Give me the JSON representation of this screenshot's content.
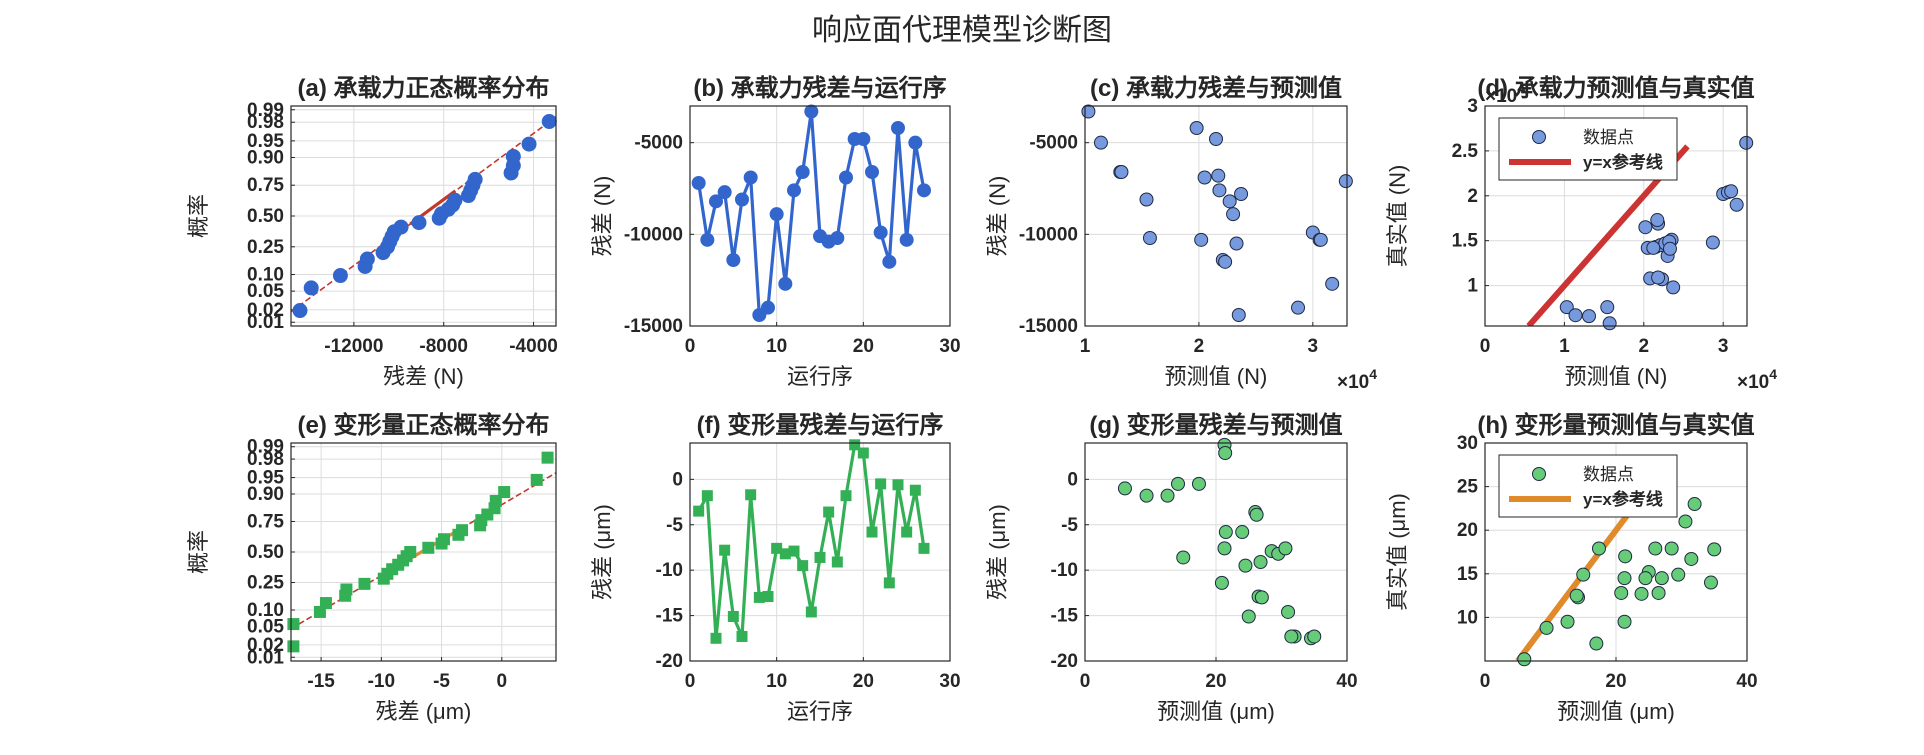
{
  "figure_title": "响应面代理模型诊断图",
  "colors": {
    "blue": "#3366CC",
    "blue_light": "#7799DD",
    "green": "#33B055",
    "green_light": "#66CC77",
    "red_ref": "#CC3333",
    "orange_ref": "#E08A2C"
  },
  "chart_data": [
    {
      "id": "a",
      "type": "scatter",
      "title": "(a) 承载力正态概率分布",
      "xlabel": "残差 (N)",
      "ylabel": "概率",
      "xlim": [
        -14800,
        -3000
      ],
      "xticks": [
        -12000,
        -8000,
        -4000
      ],
      "xtick_labels": [
        "-12000",
        "-8000",
        "-4000"
      ],
      "prob_ticks": [
        0.01,
        0.02,
        0.05,
        0.1,
        0.25,
        0.5,
        0.75,
        0.9,
        0.95,
        0.98,
        0.99
      ],
      "prob_tick_labels": [
        "0.01",
        "0.02",
        "0.05",
        "0.10",
        "0.25",
        "0.50",
        "0.75",
        "0.90",
        "0.95",
        "0.98",
        "0.99"
      ],
      "values": [
        -14400,
        -13900,
        -12600,
        -11500,
        -11400,
        -10700,
        -10500,
        -10400,
        -10300,
        -10200,
        -9900,
        -9100,
        -8200,
        -8100,
        -7800,
        -7600,
        -7500,
        -6900,
        -6800,
        -6700,
        -6600,
        -5000,
        -4900,
        -4900,
        -4200,
        -3300
      ],
      "ref_line": [
        [
          -14800,
          -3000
        ],
        [
          0.018,
          0.985
        ]
      ],
      "marker": "circle",
      "color": "#3366CC"
    },
    {
      "id": "b",
      "type": "line",
      "title": "(b) 承载力残差与运行序",
      "xlabel": "运行序",
      "ylabel": "残差 (N)",
      "xlim": [
        0,
        30
      ],
      "ylim": [
        -15000,
        -3000
      ],
      "xticks": [
        0,
        10,
        20,
        30
      ],
      "yticks": [
        -15000,
        -10000,
        -5000
      ],
      "x": [
        1,
        2,
        3,
        4,
        5,
        6,
        7,
        8,
        9,
        10,
        11,
        12,
        13,
        14,
        15,
        16,
        17,
        18,
        19,
        20,
        21,
        22,
        23,
        24,
        25,
        26,
        27
      ],
      "y": [
        -7200,
        -10300,
        -8200,
        -7700,
        -11400,
        -8100,
        -6900,
        -14400,
        -14000,
        -8900,
        -12700,
        -7600,
        -6600,
        -3300,
        -10100,
        -10400,
        -10200,
        -6900,
        -4800,
        -4800,
        -6600,
        -9900,
        -11500,
        -4200,
        -10300,
        -5000,
        -7600
      ],
      "marker": "circle",
      "color": "#3366CC"
    },
    {
      "id": "c",
      "type": "scatter",
      "title": "(c) 承载力残差与预测值",
      "xlabel": "预测值 (N)",
      "ylabel": "残差 (N)",
      "xexponent": "×10^4",
      "xlim": [
        10000,
        33000
      ],
      "ylim": [
        -15000,
        -3000
      ],
      "xticks": [
        10000,
        20000,
        30000
      ],
      "xtick_labels": [
        "1",
        "2",
        "3"
      ],
      "yticks": [
        -15000,
        -10000,
        -5000
      ],
      "x": [
        10300,
        11400,
        13100,
        13200,
        15400,
        15700,
        19800,
        20200,
        20500,
        21500,
        21700,
        21800,
        22100,
        22300,
        22700,
        23000,
        23300,
        23500,
        23700,
        28700,
        30000,
        30600,
        30700,
        31700,
        32900
      ],
      "y": [
        -3300,
        -5000,
        -6600,
        -6600,
        -8100,
        -10200,
        -4200,
        -10300,
        -6900,
        -4800,
        -6800,
        -7600,
        -11400,
        -11500,
        -8200,
        -8900,
        -10500,
        -14400,
        -7800,
        -14000,
        -9900,
        -10300,
        -10300,
        -12700,
        -7100
      ],
      "marker": "circle",
      "color": "#7799DD"
    },
    {
      "id": "d",
      "type": "scatter",
      "title": "(d) 承载力预测值与真实值",
      "xlabel": "预测值 (N)",
      "ylabel": "真实值 (N)",
      "xexponent": "×10^4",
      "yexponent": "×10^4",
      "xlim": [
        0,
        33000
      ],
      "ylim": [
        5500,
        30000
      ],
      "xticks": [
        0,
        10000,
        20000,
        30000
      ],
      "xtick_labels": [
        "0",
        "1",
        "2",
        "3"
      ],
      "yticks": [
        10000,
        15000,
        20000,
        25000,
        30000
      ],
      "ytick_labels": [
        "1",
        "1.5",
        "2",
        "2.5",
        "3"
      ],
      "x": [
        10300,
        11400,
        13100,
        15400,
        15700,
        20200,
        20500,
        21500,
        21800,
        22100,
        22300,
        22700,
        23000,
        23500,
        23700,
        20800,
        21200,
        21700,
        23200,
        28700,
        30000,
        30600,
        31700,
        32900,
        21800,
        23300,
        31000
      ],
      "y": [
        7600,
        6700,
        6600,
        7600,
        5800,
        16500,
        14200,
        14300,
        16900,
        14500,
        10700,
        14700,
        13300,
        15100,
        9800,
        10800,
        14200,
        17300,
        14900,
        14800,
        20200,
        20400,
        19000,
        25900,
        10900,
        14100,
        20500
      ],
      "legend": {
        "points": "数据点",
        "ref": "y=x参考线"
      },
      "ref_line": [
        [
          5500,
          25500
        ],
        [
          5500,
          25500
        ]
      ],
      "marker": "circle",
      "color": "#7799DD",
      "ref_color": "#CC3333"
    },
    {
      "id": "e",
      "type": "scatter",
      "title": "(e) 变形量正态概率分布",
      "xlabel": "残差 (μm)",
      "ylabel": "概率",
      "xlim": [
        -17.5,
        4.5
      ],
      "xticks": [
        -15,
        -10,
        -5,
        0
      ],
      "xtick_labels": [
        "-15",
        "-10",
        "-5",
        "0"
      ],
      "prob_ticks": [
        0.01,
        0.02,
        0.05,
        0.1,
        0.25,
        0.5,
        0.75,
        0.9,
        0.95,
        0.98,
        0.99
      ],
      "prob_tick_labels": [
        "0.01",
        "0.02",
        "0.05",
        "0.10",
        "0.25",
        "0.50",
        "0.75",
        "0.90",
        "0.95",
        "0.98",
        "0.99"
      ],
      "values": [
        -17.3,
        -17.3,
        -15.1,
        -14.6,
        -13.0,
        -12.9,
        -11.4,
        -9.8,
        -9.5,
        -9.1,
        -8.6,
        -8.2,
        -7.9,
        -7.6,
        -6.1,
        -5.0,
        -4.8,
        -3.6,
        -3.3,
        -1.8,
        -1.7,
        -1.2,
        -0.6,
        -0.5,
        0.2,
        2.9,
        3.8
      ],
      "ref_line": [
        [
          -17.5,
          4.5
        ],
        [
          0.045,
          0.96
        ]
      ],
      "marker": "square",
      "color": "#33B055"
    },
    {
      "id": "f",
      "type": "line",
      "title": "(f) 变形量残差与运行序",
      "xlabel": "运行序",
      "ylabel": "残差 (μm)",
      "xlim": [
        0,
        30
      ],
      "ylim": [
        -20,
        4
      ],
      "xticks": [
        0,
        10,
        20,
        30
      ],
      "yticks": [
        -20,
        -15,
        -10,
        -5,
        0
      ],
      "x": [
        1,
        2,
        3,
        4,
        5,
        6,
        7,
        8,
        9,
        10,
        11,
        12,
        13,
        14,
        15,
        16,
        17,
        18,
        19,
        20,
        21,
        22,
        23,
        24,
        25,
        26,
        27
      ],
      "y": [
        -3.5,
        -1.8,
        -17.5,
        -7.8,
        -15.1,
        -17.3,
        -1.7,
        -13.0,
        -12.9,
        -7.6,
        -8.2,
        -7.9,
        -9.5,
        -14.6,
        -8.6,
        -3.6,
        -9.1,
        -1.8,
        3.8,
        2.9,
        -5.8,
        -0.5,
        -11.4,
        -0.6,
        -5.8,
        -1.2,
        -7.6
      ],
      "marker": "square",
      "color": "#33B055"
    },
    {
      "id": "g",
      "type": "scatter",
      "title": "(g) 变形量残差与预测值",
      "xlabel": "预测值 (μm)",
      "ylabel": "残差 (μm)",
      "xlim": [
        0,
        40
      ],
      "ylim": [
        -20,
        4
      ],
      "xticks": [
        0,
        20,
        40
      ],
      "yticks": [
        -20,
        -15,
        -10,
        -5,
        0
      ],
      "x": [
        6.1,
        9.4,
        12.6,
        14.2,
        17.4,
        15.0,
        21.3,
        21.4,
        21.5,
        21.3,
        20.9,
        24.0,
        24.5,
        26.0,
        26.2,
        26.8,
        26.5,
        25.0,
        27.0,
        28.5,
        29.5,
        30.6,
        31.0,
        32.0,
        34.5,
        31.5,
        35.0
      ],
      "y": [
        -1.0,
        -1.8,
        -1.8,
        -0.5,
        -0.5,
        -8.6,
        3.8,
        2.9,
        -5.8,
        -7.6,
        -11.4,
        -5.8,
        -9.5,
        -3.6,
        -3.9,
        -9.1,
        -12.9,
        -15.1,
        -13.0,
        -7.9,
        -8.2,
        -7.6,
        -14.6,
        -17.3,
        -17.5,
        -17.3,
        -17.3
      ],
      "marker": "circle",
      "color": "#66CC77"
    },
    {
      "id": "h",
      "type": "scatter",
      "title": "(h) 变形量预测值与真实值",
      "xlabel": "预测值 (μm)",
      "ylabel": "真实值 (μm)",
      "xlim": [
        0,
        40
      ],
      "ylim": [
        5,
        30
      ],
      "xticks": [
        0,
        20,
        40
      ],
      "yticks": [
        10,
        15,
        20,
        25,
        30
      ],
      "x": [
        6.0,
        9.4,
        12.6,
        14.2,
        15.0,
        14.0,
        17.4,
        17.0,
        21.3,
        21.3,
        21.4,
        23.9,
        25.0,
        24.5,
        26.0,
        26.5,
        27.0,
        28.5,
        29.5,
        30.6,
        32.0,
        31.5,
        34.5,
        35.0,
        20.8,
        21.0
      ],
      "y": [
        5.2,
        8.8,
        9.5,
        12.3,
        14.9,
        12.5,
        17.9,
        7.0,
        9.5,
        14.5,
        17.0,
        12.7,
        15.2,
        14.5,
        17.9,
        12.8,
        14.5,
        17.9,
        14.9,
        21.0,
        23.0,
        16.7,
        14.0,
        17.8,
        12.8,
        23.0
      ],
      "legend": {
        "points": "数据点",
        "ref": "y=x参考线"
      },
      "ref_line": [
        [
          5,
          25
        ],
        [
          5,
          25
        ]
      ],
      "marker": "circle",
      "color": "#66CC77",
      "ref_color": "#E08A2C"
    }
  ]
}
